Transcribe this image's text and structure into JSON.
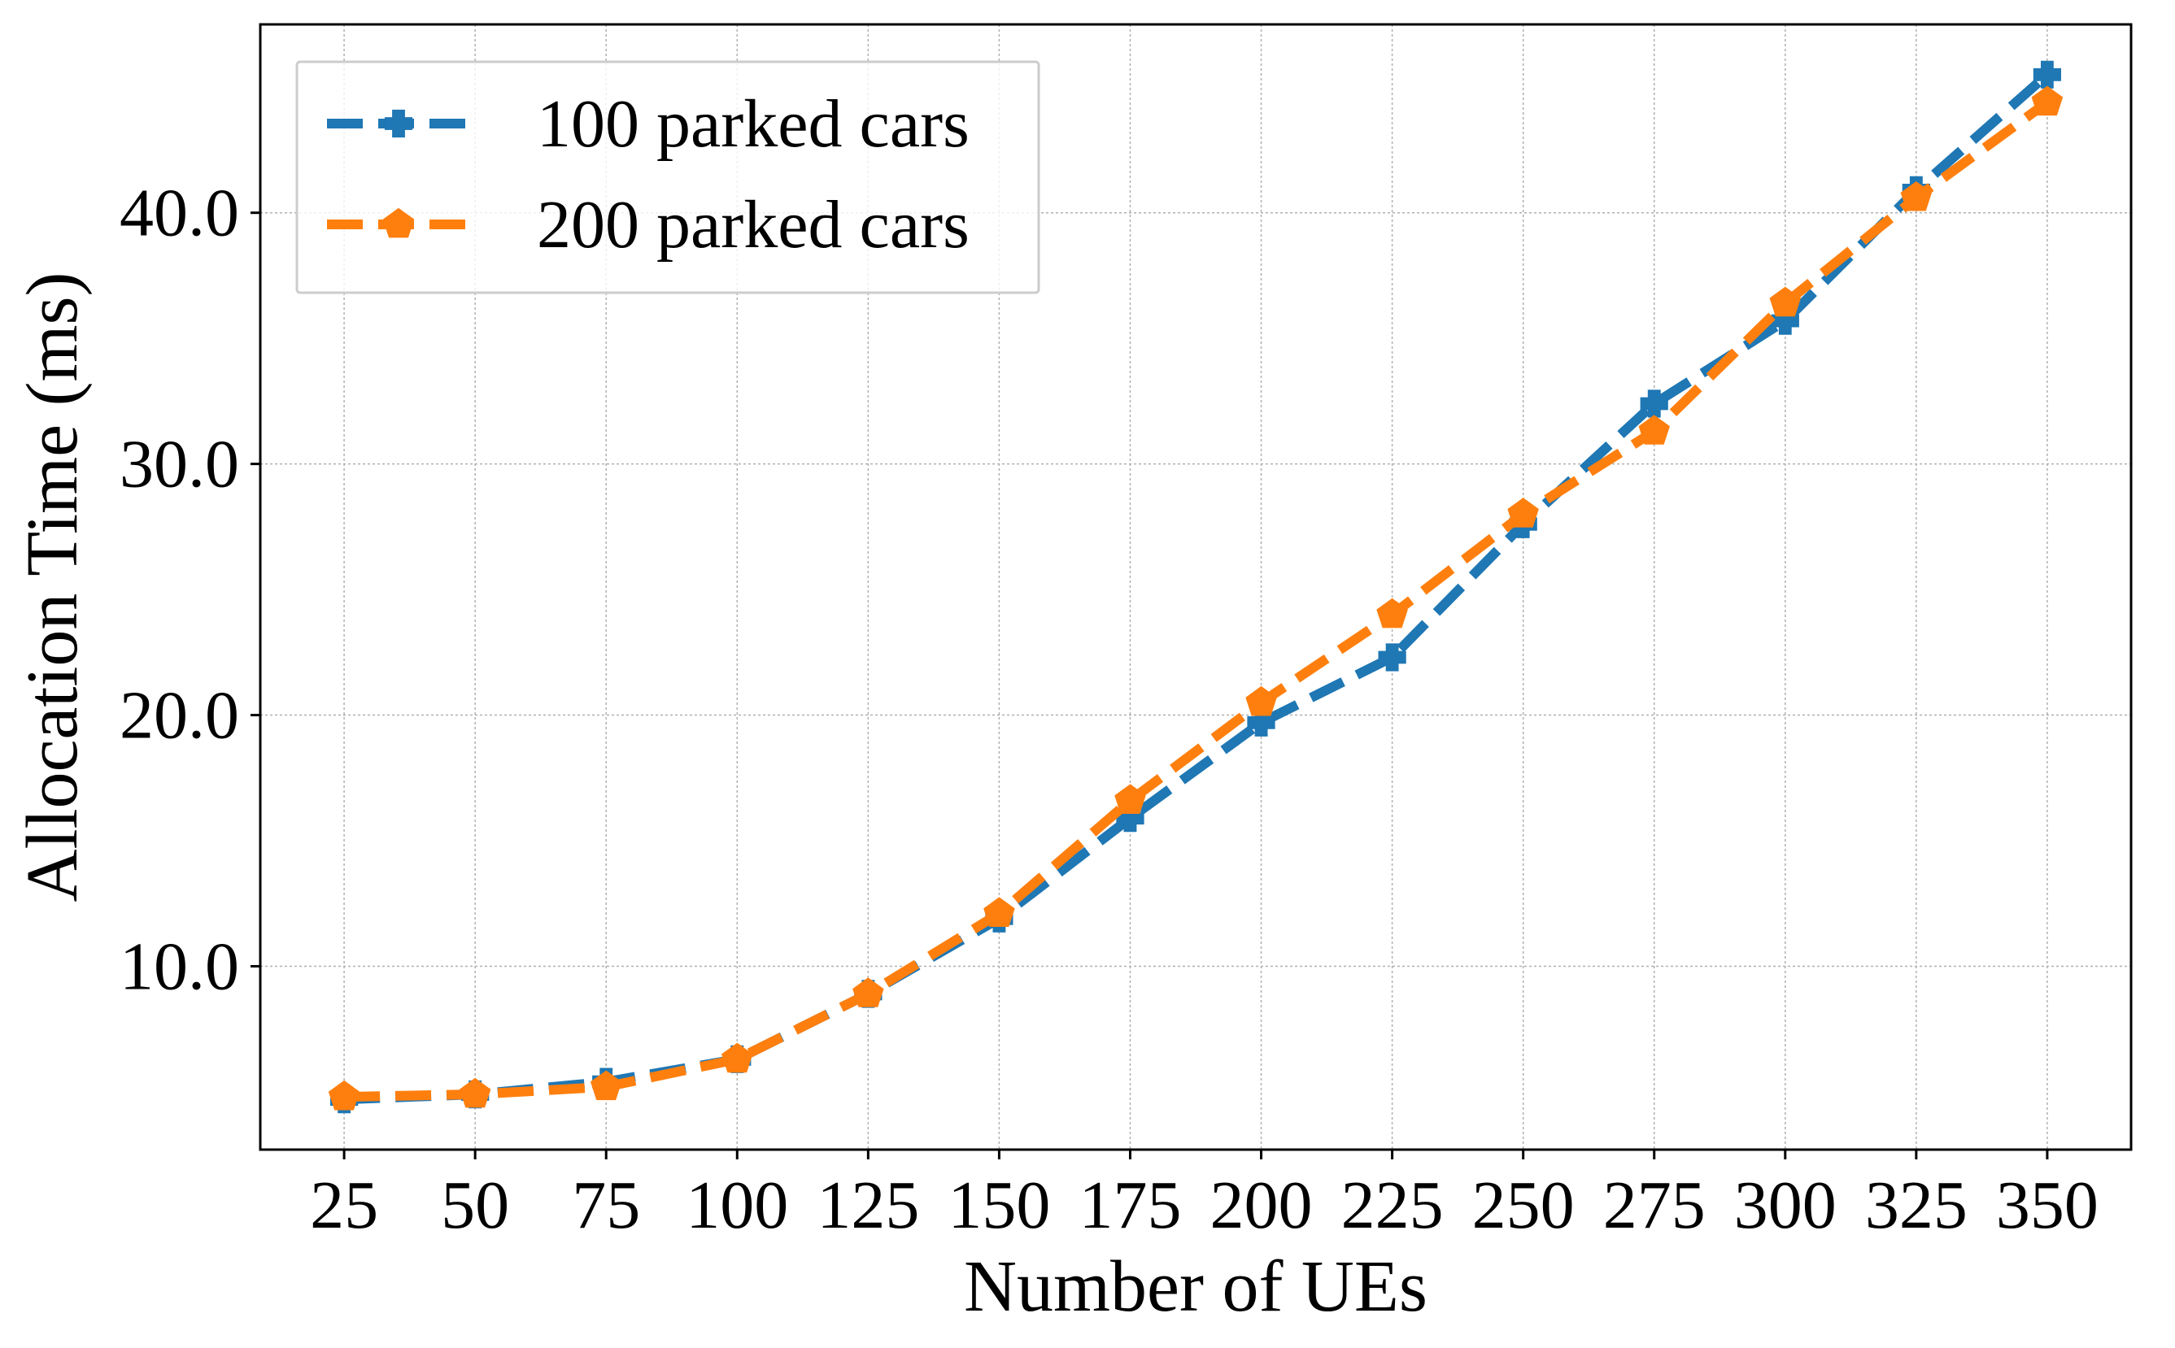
{
  "chart_data": {
    "type": "line",
    "title": "",
    "xlabel": "Number of UEs",
    "ylabel": "Allocation Time (ms)",
    "x": [
      25,
      50,
      75,
      100,
      125,
      150,
      175,
      200,
      225,
      250,
      275,
      300,
      325,
      350
    ],
    "xticks": [
      "25",
      "50",
      "75",
      "100",
      "125",
      "150",
      "175",
      "200",
      "225",
      "250",
      "275",
      "300",
      "325",
      "350"
    ],
    "yticks": [
      "10.0",
      "20.0",
      "30.0",
      "40.0"
    ],
    "ytick_values": [
      10,
      20,
      30,
      40
    ],
    "xlim": [
      9,
      366
    ],
    "ylim": [
      2.7,
      47.5
    ],
    "grid": true,
    "legend_position": "top-left",
    "series": [
      {
        "name": "100 parked cars",
        "color": "#1f77b4",
        "marker": "x-filled",
        "linestyle": "dashed",
        "values": [
          4.7,
          4.9,
          5.4,
          6.3,
          8.9,
          11.9,
          15.9,
          19.7,
          22.3,
          27.6,
          32.4,
          35.7,
          40.9,
          45.5
        ]
      },
      {
        "name": "200 parked cars",
        "color": "#ff7f0e",
        "marker": "pentagon",
        "linestyle": "dashed",
        "values": [
          4.8,
          4.9,
          5.2,
          6.3,
          8.9,
          12.1,
          16.6,
          20.5,
          24.0,
          28.0,
          31.3,
          36.4,
          40.6,
          44.4
        ]
      }
    ]
  }
}
